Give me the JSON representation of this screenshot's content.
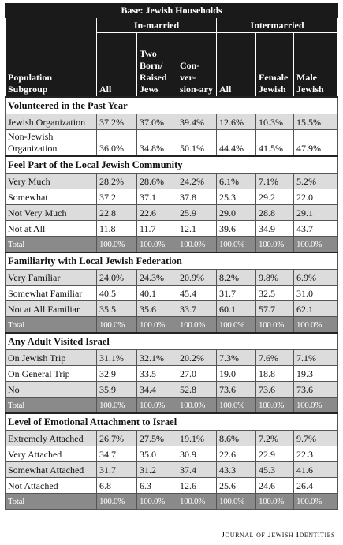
{
  "header": {
    "base": "Base: Jewish Households",
    "groups": [
      "In-married",
      "Intermarried"
    ],
    "columns": [
      "Population Subgroup",
      "All",
      "Two Born/ Raised Jews",
      "Con-ver-sion-ary",
      "All",
      "Female Jewish",
      "Male Jewish"
    ]
  },
  "sections": [
    {
      "title": "Volunteered in the Past Year",
      "rows": [
        [
          "Jewish Organization",
          "37.2%",
          "37.0%",
          "39.4%",
          "12.6%",
          "10.3%",
          "15.5%"
        ],
        [
          "Non-Jewish Organization",
          "36.0%",
          "34.8%",
          "50.1%",
          "44.4%",
          "41.5%",
          "47.9%"
        ]
      ]
    },
    {
      "title": "Feel Part of the Local Jewish Community",
      "rows": [
        [
          "Very Much",
          "28.2%",
          "28.6%",
          "24.2%",
          "6.1%",
          "7.1%",
          "5.2%"
        ],
        [
          "Somewhat",
          "37.2",
          "37.1",
          "37.8",
          "25.3",
          "29.2",
          "22.0"
        ],
        [
          "Not Very Much",
          "22.8",
          "22.6",
          "25.9",
          "29.0",
          "28.8",
          "29.1"
        ],
        [
          "Not at All",
          "11.8",
          "11.7",
          "12.1",
          "39.6",
          "34.9",
          "43.7"
        ],
        [
          "Total",
          "100.0%",
          "100.0%",
          "100.0%",
          "100.0%",
          "100.0%",
          "100.0%"
        ]
      ]
    },
    {
      "title": "Familiarity with Local Jewish Federation",
      "rows": [
        [
          "Very Familiar",
          "24.0%",
          "24.3%",
          "20.9%",
          "8.2%",
          "9.8%",
          "6.9%"
        ],
        [
          "Somewhat Familiar",
          "40.5",
          "40.1",
          "45.4",
          "31.7",
          "32.5",
          "31.0"
        ],
        [
          "Not at All Familiar",
          "35.5",
          "35.6",
          "33.7",
          "60.1",
          "57.7",
          "62.1"
        ],
        [
          "Total",
          "100.0%",
          "100.0%",
          "100.0%",
          "100.0%",
          "100.0%",
          "100.0%"
        ]
      ]
    },
    {
      "title": "Any Adult Visited Israel",
      "rows": [
        [
          "On Jewish Trip",
          "31.1%",
          "32.1%",
          "20.2%",
          "7.3%",
          "7.6%",
          "7.1%"
        ],
        [
          "On General Trip",
          "32.9",
          "33.5",
          "27.0",
          "19.0",
          "18.8",
          "19.3"
        ],
        [
          "No",
          "35.9",
          "34.4",
          "52.8",
          "73.6",
          "73.6",
          "73.6"
        ],
        [
          "Total",
          "100.0%",
          "100.0%",
          "100.0%",
          "100.0%",
          "100.0%",
          "100.0%"
        ]
      ]
    },
    {
      "title": "Level of Emotional Attachment to Israel",
      "rows": [
        [
          "Extremely Attached",
          "26.7%",
          "27.5%",
          "19.1%",
          "8.6%",
          "7.2%",
          "9.7%"
        ],
        [
          "Very Attached",
          "34.7",
          "35.0",
          "30.9",
          "22.6",
          "22.9",
          "22.3"
        ],
        [
          "Somewhat Attached",
          "31.7",
          "31.2",
          "37.4",
          "43.3",
          "45.3",
          "41.6"
        ],
        [
          "Not Attached",
          "6.8",
          "6.3",
          "12.6",
          "25.6",
          "24.6",
          "26.4"
        ],
        [
          "Total",
          "100.0%",
          "100.0%",
          "100.0%",
          "100.0%",
          "100.0%",
          "100.0%"
        ]
      ]
    }
  ],
  "footer": "Journal of Jewish Identities"
}
